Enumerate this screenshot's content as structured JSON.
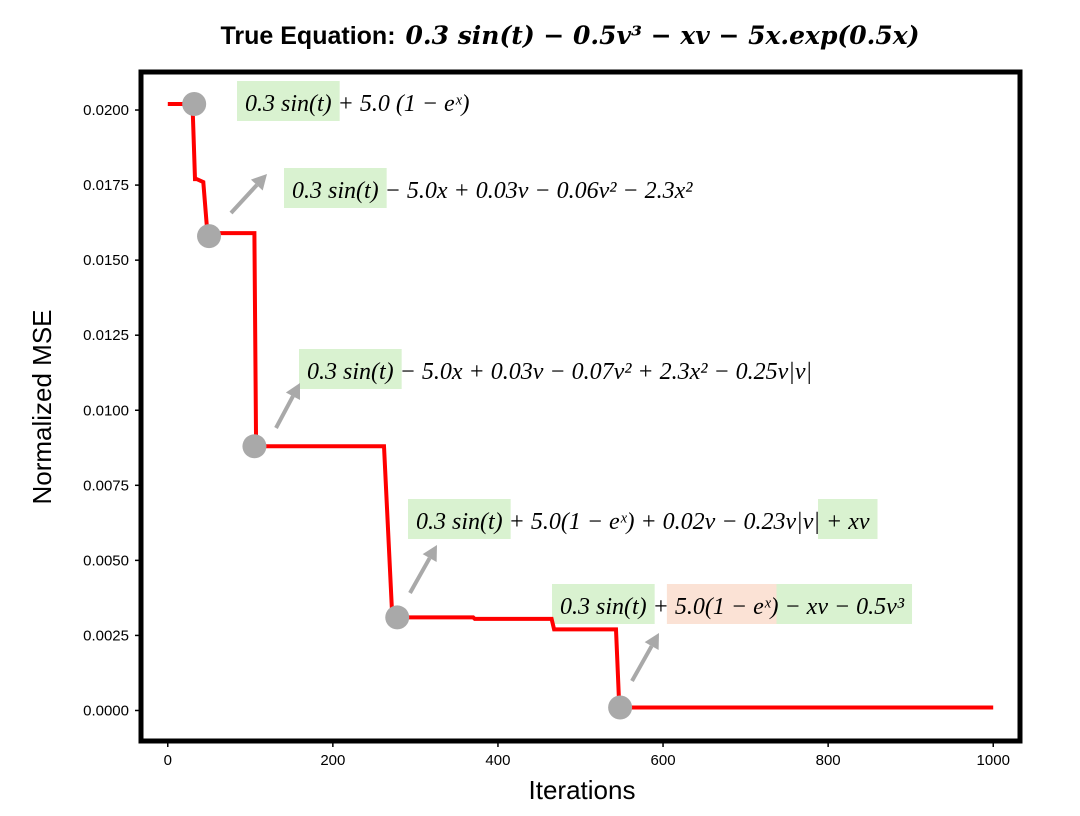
{
  "chart_data": {
    "type": "line",
    "title_prefix": "True Equation:",
    "title_equation": "0.3 sin(t) − 0.5v³ − xv − 5x.exp(0.5x)",
    "xlabel": "Iterations",
    "ylabel": "Normalized MSE",
    "xlim": [
      -30,
      1030
    ],
    "ylim": [
      -0.00095,
      0.0212
    ],
    "xticks": [
      0,
      200,
      400,
      600,
      800,
      1000
    ],
    "xtick_labels": [
      "0",
      "200",
      "400",
      "600",
      "800",
      "1000"
    ],
    "yticks": [
      0.0,
      0.0025,
      0.005,
      0.0075,
      0.01,
      0.0125,
      0.015,
      0.0175,
      0.02
    ],
    "ytick_labels": [
      "0.0000",
      "0.0025",
      "0.0050",
      "0.0075",
      "0.0100",
      "0.0125",
      "0.0150",
      "0.0175",
      "0.0200"
    ],
    "grid": false,
    "line_color": "#ff0000",
    "marker_color": "#a9a9a9",
    "arrow_color": "#a9a9a9",
    "highlight_green": "#d9f2d0",
    "highlight_orange": "#fbe2d5",
    "series": [
      {
        "x": [
          0,
          30,
          33,
          35,
          43,
          48,
          105,
          107,
          262,
          272,
          275,
          370,
          372,
          465,
          468,
          543,
          547,
          1000
        ],
        "y": [
          0.0202,
          0.0202,
          0.0177,
          0.0177,
          0.0176,
          0.0159,
          0.0159,
          0.0088,
          0.0088,
          0.0031,
          0.0031,
          0.0031,
          0.00305,
          0.00305,
          0.0027,
          0.0027,
          0.0001,
          0.0001
        ]
      }
    ],
    "points": [
      {
        "x": 32,
        "y": 0.0202
      },
      {
        "x": 50,
        "y": 0.0158
      },
      {
        "x": 105,
        "y": 0.0088
      },
      {
        "x": 278,
        "y": 0.0031
      },
      {
        "x": 548,
        "y": 0.0001
      }
    ],
    "annotations": [
      {
        "parts": [
          {
            "text": "0.3 sin(t)",
            "hl": "green"
          },
          {
            "text": " + 5.0 (1 − eˣ)",
            "hl": ""
          }
        ]
      },
      {
        "parts": [
          {
            "text": "0.3 sin(t)",
            "hl": "green"
          },
          {
            "text": " − 5.0x + 0.03v − 0.06v² − 2.3x²",
            "hl": ""
          }
        ]
      },
      {
        "parts": [
          {
            "text": "0.3 sin(t)",
            "hl": "green"
          },
          {
            "text": " − 5.0x + 0.03v − 0.07v² + 2.3x² − 0.25v|v|",
            "hl": ""
          }
        ]
      },
      {
        "parts": [
          {
            "text": "0.3 sin(t)",
            "hl": "green"
          },
          {
            "text": " + 5.0(1 − eˣ) + 0.02v − 0.23v|v| ",
            "hl": ""
          },
          {
            "text": "+ xv",
            "hl": "green"
          }
        ]
      },
      {
        "parts": [
          {
            "text": "0.3 sin(t)",
            "hl": "green"
          },
          {
            "text": " + ",
            "hl": ""
          },
          {
            "text": "5.0(1 − eˣ)",
            "hl": "orange"
          },
          {
            "text": " ",
            "hl": ""
          },
          {
            "text": "− xv",
            "hl": "green"
          },
          {
            "text": " ",
            "hl": ""
          },
          {
            "text": "− 0.5v³",
            "hl": "green"
          }
        ]
      }
    ]
  }
}
